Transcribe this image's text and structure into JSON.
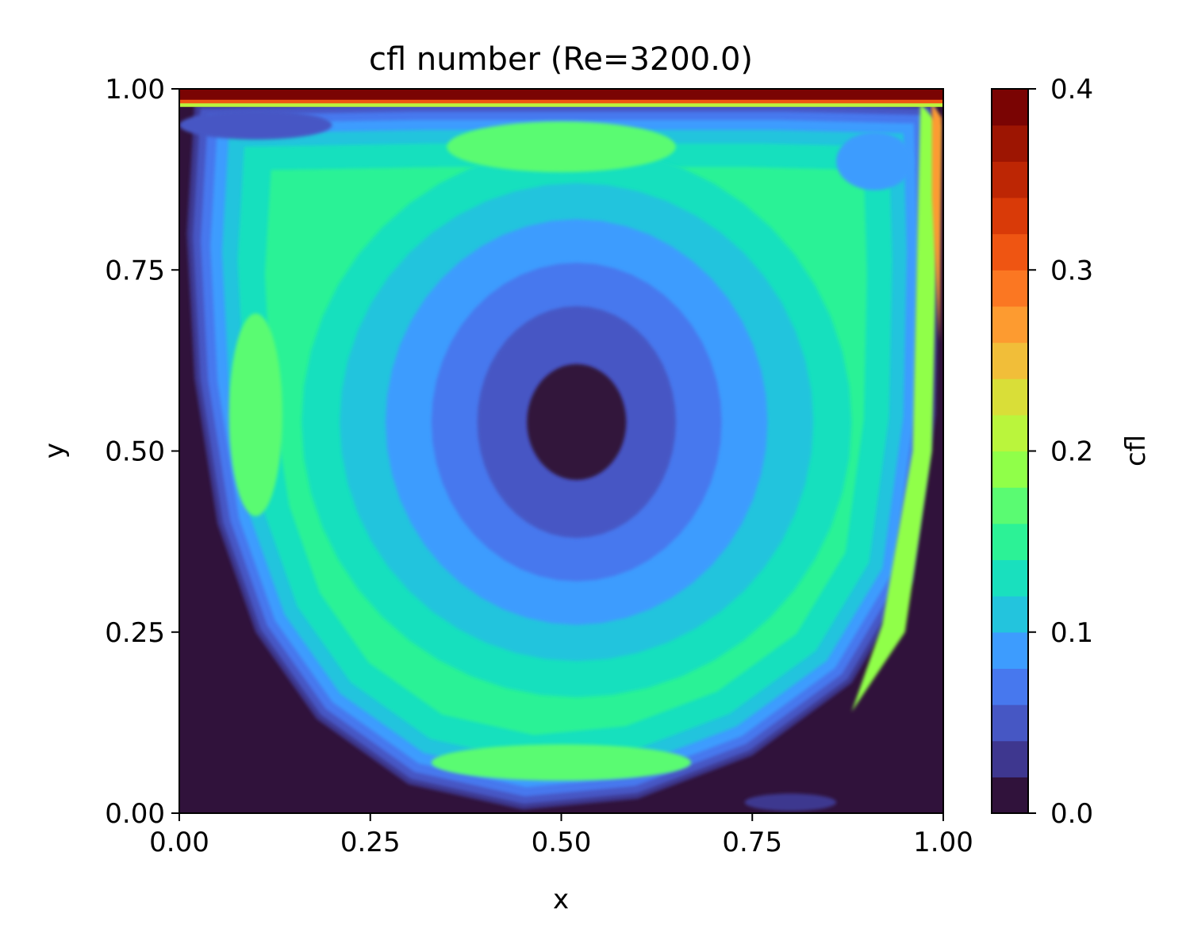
{
  "chart_data": {
    "type": "heatmap",
    "title": "cfl number (Re=3200.0)",
    "xlabel": "x",
    "ylabel": "y",
    "xlim": [
      0.0,
      1.0
    ],
    "ylim": [
      0.0,
      1.0
    ],
    "xticks": [
      "0.00",
      "0.25",
      "0.50",
      "0.75",
      "1.00"
    ],
    "yticks": [
      "0.00",
      "0.25",
      "0.50",
      "0.75",
      "1.00"
    ],
    "grid": false,
    "colorbar": {
      "label": "cfl",
      "range": [
        0.0,
        0.4
      ],
      "ticks": [
        "0.0",
        "0.1",
        "0.2",
        "0.3",
        "0.4"
      ],
      "levels": 20,
      "colormap": "turbo",
      "colors": [
        "#30123b",
        "#3e378f",
        "#4657c4",
        "#4778ee",
        "#3d9cfe",
        "#23c4dd",
        "#19e0be",
        "#2cf296",
        "#5afb72",
        "#90ff49",
        "#baf53c",
        "#d9de38",
        "#f1be39",
        "#fd9b30",
        "#fb7722",
        "#ef5512",
        "#d93a08",
        "#bd2604",
        "#9d1502",
        "#7a0403"
      ]
    },
    "field_description_levels": {
      "vortex_center": [
        0.52,
        0.52
      ],
      "max_cfl_at_lid": 0.4
    }
  }
}
